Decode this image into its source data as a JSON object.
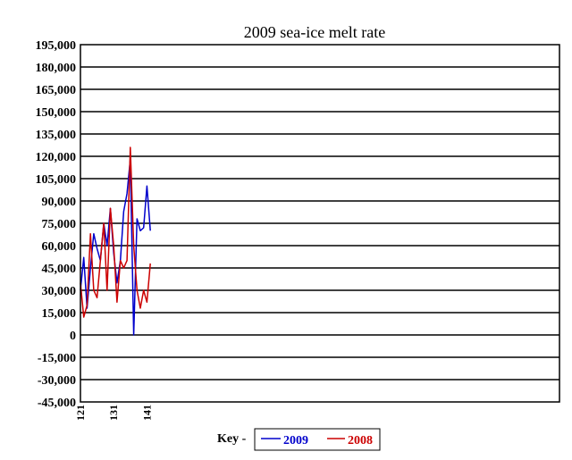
{
  "chart_data": {
    "type": "line",
    "title": "2009 sea-ice melt rate",
    "xlabel": "",
    "ylabel": "",
    "ylim": [
      -45000,
      195000
    ],
    "y_ticks": [
      195000,
      180000,
      165000,
      150000,
      135000,
      120000,
      105000,
      90000,
      75000,
      60000,
      45000,
      30000,
      15000,
      0,
      -15000,
      -30000,
      -45000
    ],
    "y_tick_labels": [
      "195,000",
      "180,000",
      "165,000",
      "150,000",
      "135,000",
      "120,000",
      "105,000",
      "90,000",
      "75,000",
      "60,000",
      "45,000",
      "30,000",
      "15,000",
      "0",
      "-15,000",
      "-30,000",
      "-45,000"
    ],
    "xlim": [
      121,
      265
    ],
    "x_ticks": [
      121,
      131,
      141
    ],
    "x_tick_labels": [
      "121",
      "131",
      "141"
    ],
    "grid": "horizontal",
    "legend_prefix": "Key -",
    "series": [
      {
        "name": "2009",
        "color": "#0000cc",
        "x": [
          121,
          122,
          123,
          124,
          125,
          126,
          127,
          128,
          129,
          130,
          131,
          132,
          133,
          134,
          135,
          136,
          137,
          138,
          139,
          140,
          141,
          142,
          143,
          144,
          145,
          146
        ],
        "y": [
          30000,
          52000,
          18000,
          45000,
          68000,
          58000,
          50000,
          75000,
          60000,
          85000,
          55000,
          35000,
          50000,
          83000,
          95000,
          118000,
          0,
          78000,
          70000,
          72000,
          100000,
          70000,
          null,
          null,
          null,
          null
        ]
      },
      {
        "name": "2008",
        "color": "#cc0000",
        "x": [
          121,
          122,
          123,
          124,
          125,
          126,
          127,
          128,
          129,
          130,
          131,
          132,
          133,
          134,
          135,
          136,
          137,
          138,
          139,
          140,
          141,
          142,
          143,
          144,
          145,
          146
        ],
        "y": [
          35000,
          12000,
          20000,
          68000,
          30000,
          25000,
          50000,
          75000,
          30000,
          85000,
          60000,
          22000,
          50000,
          45000,
          50000,
          126000,
          60000,
          30000,
          18000,
          30000,
          22000,
          48000,
          null,
          null,
          null,
          null
        ]
      }
    ]
  }
}
